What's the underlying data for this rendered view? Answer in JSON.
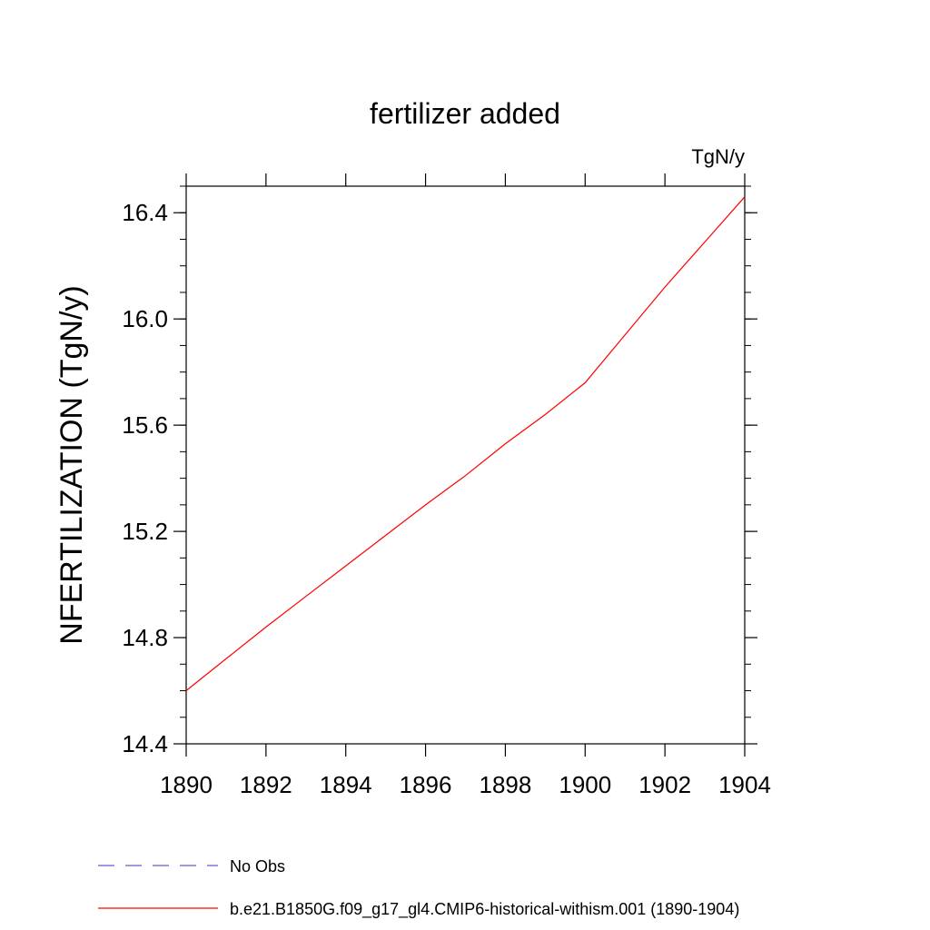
{
  "chart_data": {
    "type": "line",
    "title": "fertilizer added",
    "units_label": "TgN/y",
    "xlabel": "",
    "ylabel": "NFERTILIZATION  (TgN/y)",
    "xlim": [
      1890,
      1904
    ],
    "ylim": [
      14.4,
      16.5
    ],
    "x_ticks": [
      1890,
      1892,
      1894,
      1896,
      1898,
      1900,
      1902,
      1904
    ],
    "x_tick_labels": [
      "1890",
      "1892",
      "1894",
      "1896",
      "1898",
      "1900",
      "1902",
      "1904"
    ],
    "y_ticks": [
      14.4,
      14.8,
      15.2,
      15.6,
      16.0,
      16.4
    ],
    "y_tick_labels": [
      "14.4",
      "14.8",
      "15.2",
      "15.6",
      "16.0",
      "16.4"
    ],
    "y_minor_step": 0.1,
    "grid": false,
    "legend_position": "bottom-left",
    "series": [
      {
        "name": "No Obs",
        "color": "#6a5acd",
        "dash": "dashed",
        "x": [],
        "y": []
      },
      {
        "name": "b.e21.B1850G.f09_g17_gl4.CMIP6-historical-withism.001 (1890-1904)",
        "color": "#ff0000",
        "dash": "solid",
        "x": [
          1890,
          1891,
          1892,
          1893,
          1894,
          1895,
          1896,
          1897,
          1898,
          1899,
          1900,
          1901,
          1902,
          1903,
          1904
        ],
        "y": [
          14.6,
          14.72,
          14.84,
          14.955,
          15.07,
          15.185,
          15.3,
          15.41,
          15.53,
          15.64,
          15.76,
          15.94,
          16.12,
          16.29,
          16.46
        ]
      }
    ]
  }
}
